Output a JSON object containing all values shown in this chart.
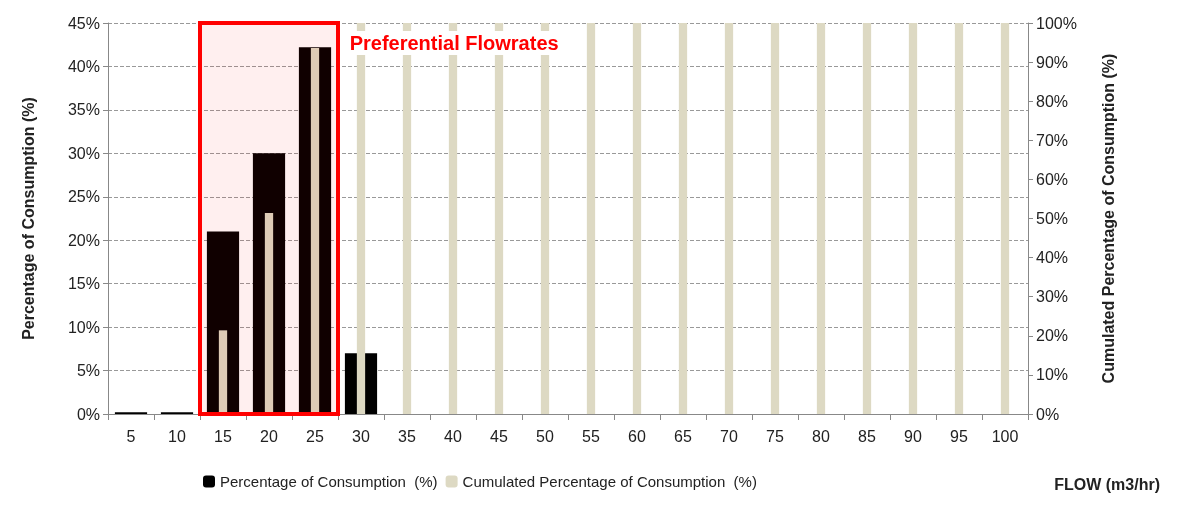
{
  "chart_data": {
    "type": "bar",
    "xlabel": "FLOW (m3/hr)",
    "ylabel": "Percentage of Consumption (%)",
    "y2label": "Cumulated Percentage of Consumption (%)",
    "categories": [
      "5",
      "10",
      "15",
      "20",
      "25",
      "30",
      "35",
      "40",
      "45",
      "50",
      "55",
      "60",
      "65",
      "70",
      "75",
      "80",
      "85",
      "90",
      "95",
      "100"
    ],
    "series": [
      {
        "name": "Percentage of Consumption  (%)",
        "color": "#000000",
        "values": [
          0.2,
          0.2,
          21,
          30,
          42.2,
          7,
          0,
          0,
          0,
          0,
          0,
          0,
          0,
          0,
          0,
          0,
          0,
          0,
          0,
          0
        ]
      },
      {
        "name": "Cumulated Percentage of Consumption  (%)",
        "color": "#ddd9c3",
        "axis": "y2",
        "values": [
          null,
          null,
          21.4,
          51.4,
          93.6,
          100,
          100,
          100,
          100,
          100,
          100,
          100,
          100,
          100,
          100,
          100,
          100,
          100,
          100,
          100
        ]
      }
    ],
    "ylim": [
      0,
      45
    ],
    "yticks": [
      {
        "value": 0,
        "label": "0%"
      },
      {
        "value": 5,
        "label": "5%"
      },
      {
        "value": 10,
        "label": "10%"
      },
      {
        "value": 15,
        "label": "15%"
      },
      {
        "value": 20,
        "label": "20%"
      },
      {
        "value": 25,
        "label": "25%"
      },
      {
        "value": 30,
        "label": "30%"
      },
      {
        "value": 35,
        "label": "35%"
      },
      {
        "value": 40,
        "label": "40%"
      },
      {
        "value": 45,
        "label": "45%"
      }
    ],
    "y2lim": [
      0,
      100
    ],
    "y2ticks": [
      {
        "value": 0,
        "label": "0%"
      },
      {
        "value": 10,
        "label": "10%"
      },
      {
        "value": 20,
        "label": "20%"
      },
      {
        "value": 30,
        "label": "30%"
      },
      {
        "value": 40,
        "label": "40%"
      },
      {
        "value": 50,
        "label": "50%"
      },
      {
        "value": 60,
        "label": "60%"
      },
      {
        "value": 70,
        "label": "70%"
      },
      {
        "value": 80,
        "label": "80%"
      },
      {
        "value": 90,
        "label": "90%"
      },
      {
        "value": 100,
        "label": "100%"
      }
    ],
    "bands": [
      {
        "axis": "x",
        "from": "15",
        "to": "25",
        "label": "Preferential Flowrates",
        "color": "#ff0000"
      }
    ],
    "grid": "y",
    "legend": "bottom"
  }
}
